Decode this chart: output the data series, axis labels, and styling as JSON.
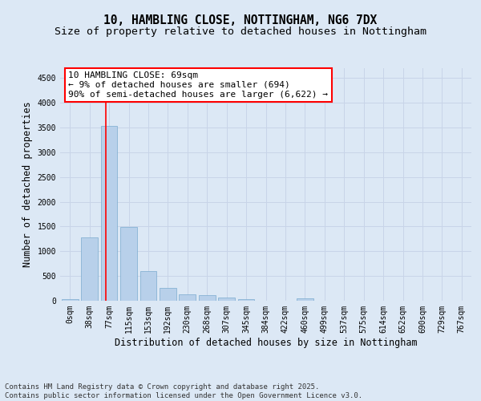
{
  "title_line1": "10, HAMBLING CLOSE, NOTTINGHAM, NG6 7DX",
  "title_line2": "Size of property relative to detached houses in Nottingham",
  "xlabel": "Distribution of detached houses by size in Nottingham",
  "ylabel": "Number of detached properties",
  "categories": [
    "0sqm",
    "38sqm",
    "77sqm",
    "115sqm",
    "153sqm",
    "192sqm",
    "230sqm",
    "268sqm",
    "307sqm",
    "345sqm",
    "384sqm",
    "422sqm",
    "460sqm",
    "499sqm",
    "537sqm",
    "575sqm",
    "614sqm",
    "652sqm",
    "690sqm",
    "729sqm",
    "767sqm"
  ],
  "values": [
    30,
    1280,
    3530,
    1490,
    605,
    255,
    130,
    115,
    70,
    30,
    5,
    0,
    45,
    0,
    0,
    0,
    0,
    0,
    0,
    0,
    0
  ],
  "bar_color": "#b8d0ea",
  "bar_edge_color": "#7aabcf",
  "grid_color": "#c8d4e8",
  "background_color": "#dce8f5",
  "axes_background": "#dce8f5",
  "red_line_x": 1.82,
  "annotation_box_text": "10 HAMBLING CLOSE: 69sqm\n← 9% of detached houses are smaller (694)\n90% of semi-detached houses are larger (6,622) →",
  "ylim": [
    0,
    4700
  ],
  "yticks": [
    0,
    500,
    1000,
    1500,
    2000,
    2500,
    3000,
    3500,
    4000,
    4500
  ],
  "footer_line1": "Contains HM Land Registry data © Crown copyright and database right 2025.",
  "footer_line2": "Contains public sector information licensed under the Open Government Licence v3.0.",
  "title_fontsize": 10.5,
  "subtitle_fontsize": 9.5,
  "tick_fontsize": 7,
  "ylabel_fontsize": 8.5,
  "xlabel_fontsize": 8.5,
  "annotation_fontsize": 8,
  "footer_fontsize": 6.5
}
